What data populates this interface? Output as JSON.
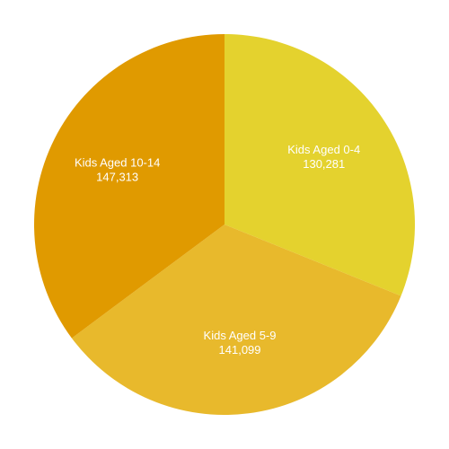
{
  "chart_data": {
    "type": "pie",
    "categories": [
      "Kids Aged 0-4",
      "Kids Aged 5-9",
      "Kids Aged 10-14"
    ],
    "values": [
      130281,
      141099,
      147313
    ],
    "value_labels": [
      "130,281",
      "141,099",
      "147,313"
    ],
    "colors": [
      "#e4d22e",
      "#e8b92c",
      "#e09a00"
    ]
  }
}
